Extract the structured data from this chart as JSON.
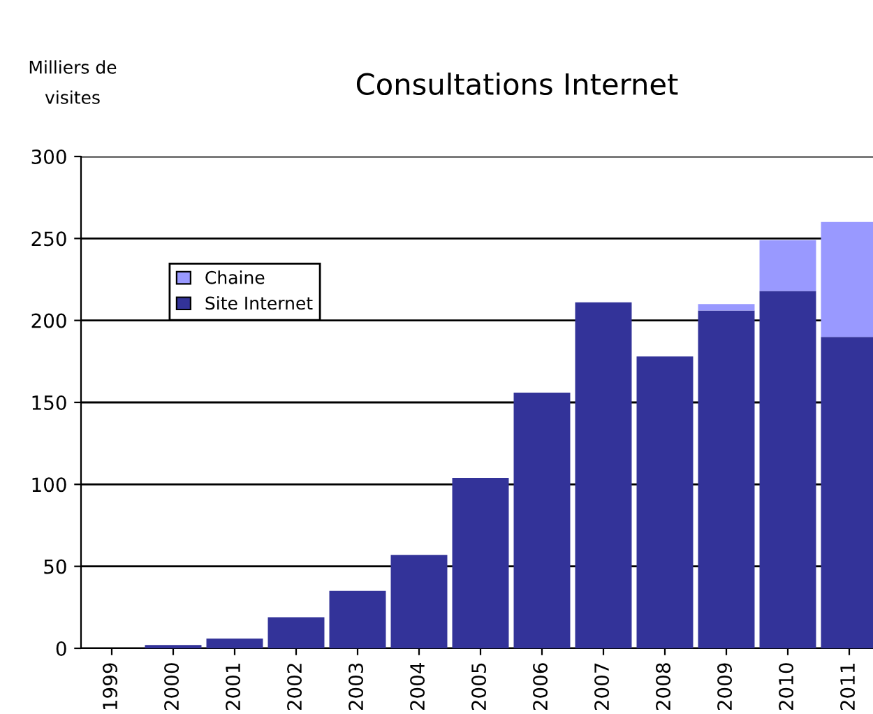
{
  "chart_data": {
    "type": "bar",
    "title": "Consultations Internet",
    "ylabel": "Milliers de visites",
    "stacked": true,
    "categories": [
      "1999",
      "2000",
      "2001",
      "2002",
      "2003",
      "2004",
      "2005",
      "2006",
      "2007",
      "2008",
      "2009",
      "2010",
      "2011"
    ],
    "series": [
      {
        "name": "Site Internet",
        "color": "#333399",
        "values": [
          null,
          2,
          6,
          19,
          35,
          57,
          104,
          156,
          211,
          178,
          206,
          218,
          190
        ]
      },
      {
        "name": "Chaine",
        "color": "#9999ff",
        "values": [
          null,
          null,
          null,
          null,
          null,
          null,
          null,
          null,
          null,
          null,
          4,
          31,
          70
        ]
      }
    ],
    "ylim": [
      0,
      300
    ],
    "yticks": [
      0,
      50,
      100,
      150,
      200,
      250,
      300
    ],
    "grid": "y",
    "legend": "top left"
  }
}
